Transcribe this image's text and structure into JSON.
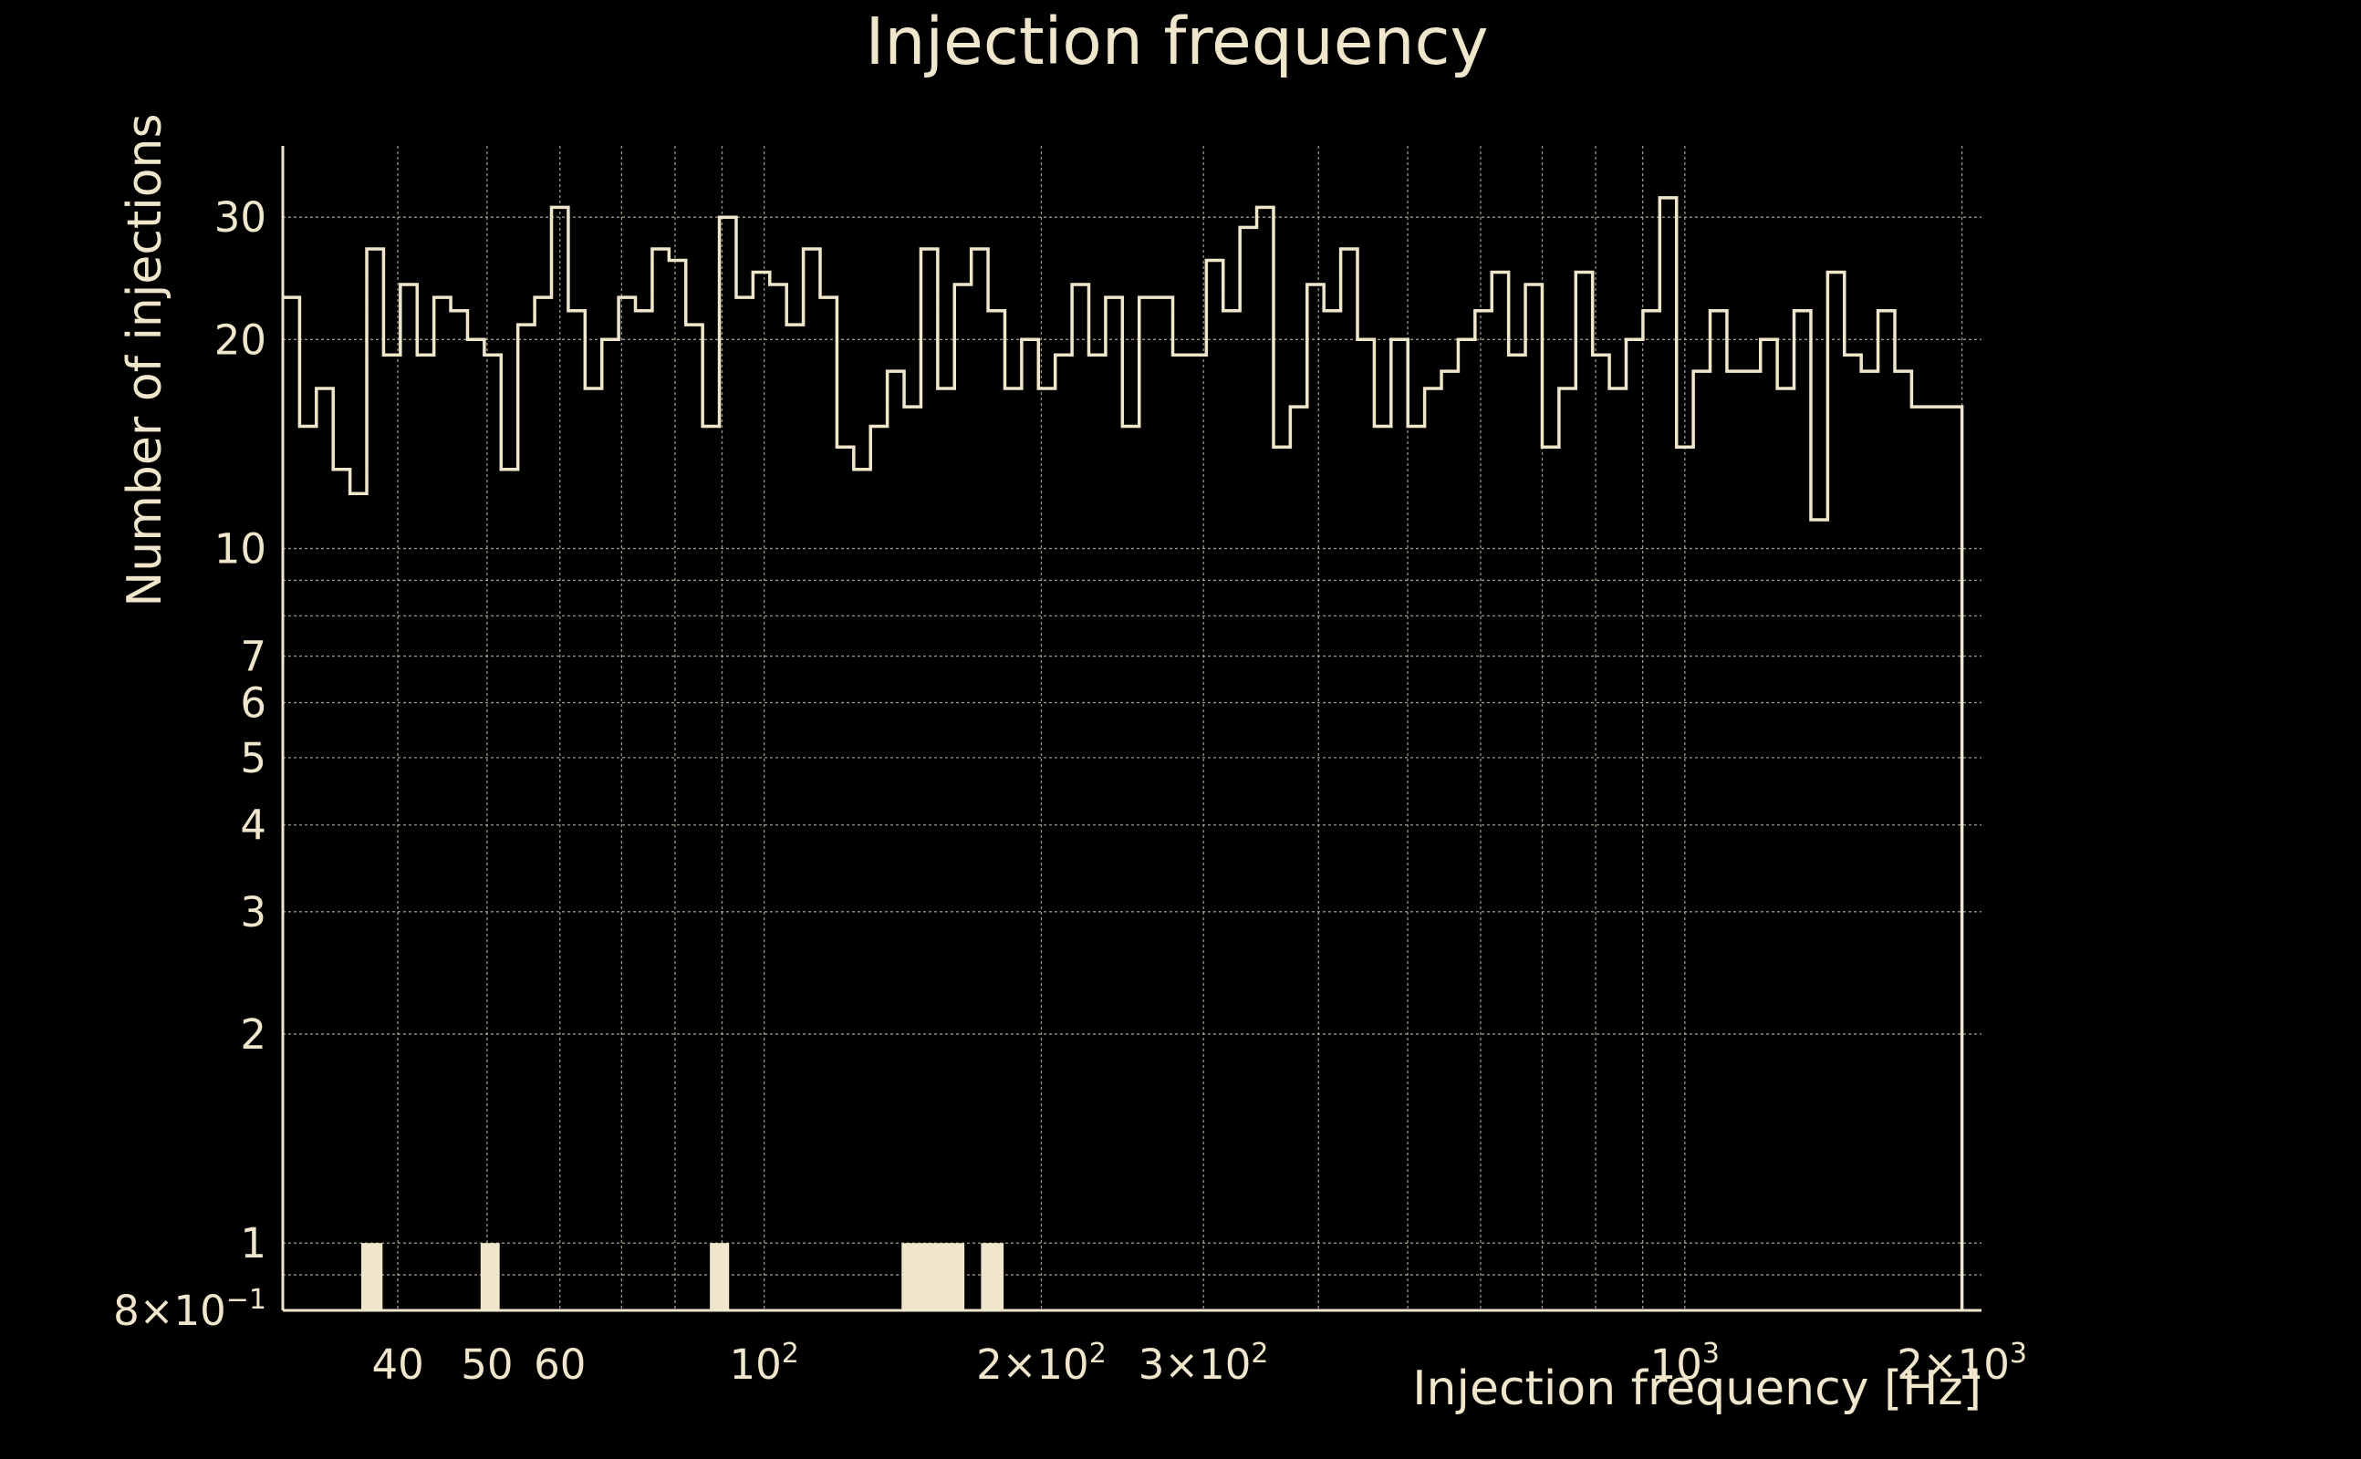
{
  "chart_data": {
    "type": "bar",
    "title": "Injection frequency",
    "xlabel": "Injection frequency [Hz]",
    "ylabel": "Number of injections",
    "x_scale": "log",
    "y_scale": "log",
    "xlim": [
      30,
      2100
    ],
    "ylim": [
      0.8,
      38
    ],
    "grid": true,
    "color": "#f0e6cc",
    "x_ticks": [
      {
        "value": 40,
        "label": "40"
      },
      {
        "value": 50,
        "label": "50"
      },
      {
        "value": 60,
        "label": "60"
      },
      {
        "value": 100,
        "label": "10",
        "exp": "2"
      },
      {
        "value": 200,
        "label": "2×10",
        "exp": "2"
      },
      {
        "value": 300,
        "label": "3×10",
        "exp": "2"
      },
      {
        "value": 1000,
        "label": "10",
        "exp": "3"
      },
      {
        "value": 2000,
        "label": "2×10",
        "exp": "3"
      }
    ],
    "y_ticks": [
      {
        "value": 0.8,
        "label": "8×10",
        "exp": "−1"
      },
      {
        "value": 1,
        "label": "1"
      },
      {
        "value": 2,
        "label": "2"
      },
      {
        "value": 3,
        "label": "3"
      },
      {
        "value": 4,
        "label": "4"
      },
      {
        "value": 5,
        "label": "5"
      },
      {
        "value": 6,
        "label": "6"
      },
      {
        "value": 7,
        "label": "7"
      },
      {
        "value": 10,
        "label": "10"
      },
      {
        "value": 20,
        "label": "20"
      },
      {
        "value": 30,
        "label": "30"
      }
    ],
    "bin_edges_hz": [
      30,
      2000
    ],
    "bin_count": 100,
    "counts": [
      23,
      15,
      17,
      13,
      12,
      27,
      19,
      24,
      19,
      23,
      22,
      20,
      19,
      13,
      21,
      23,
      31,
      22,
      17,
      20,
      23,
      22,
      27,
      26,
      21,
      15,
      30,
      23,
      25,
      24,
      21,
      27,
      23,
      14,
      13,
      15,
      18,
      16,
      27,
      17,
      24,
      27,
      22,
      17,
      20,
      17,
      19,
      24,
      19,
      23,
      15,
      23,
      23,
      19,
      19,
      26,
      22,
      29,
      31,
      14,
      16,
      24,
      22,
      27,
      20,
      15,
      20,
      15,
      17,
      18,
      20,
      22,
      25,
      19,
      24,
      14,
      17,
      25,
      19,
      17,
      20,
      22,
      32,
      14,
      18,
      22,
      18,
      18,
      20,
      17,
      22,
      11,
      25,
      19,
      18,
      22,
      18,
      16,
      16,
      16
    ],
    "highlight_bars": [
      {
        "x0": 36.5,
        "x1": 38.5,
        "value": 1
      },
      {
        "x0": 49.2,
        "x1": 51.6,
        "value": 1
      },
      {
        "x0": 87.3,
        "x1": 91.6,
        "value": 1
      },
      {
        "x0": 141,
        "x1": 165,
        "value": 1
      },
      {
        "x0": 172,
        "x1": 182,
        "value": 1
      }
    ]
  }
}
